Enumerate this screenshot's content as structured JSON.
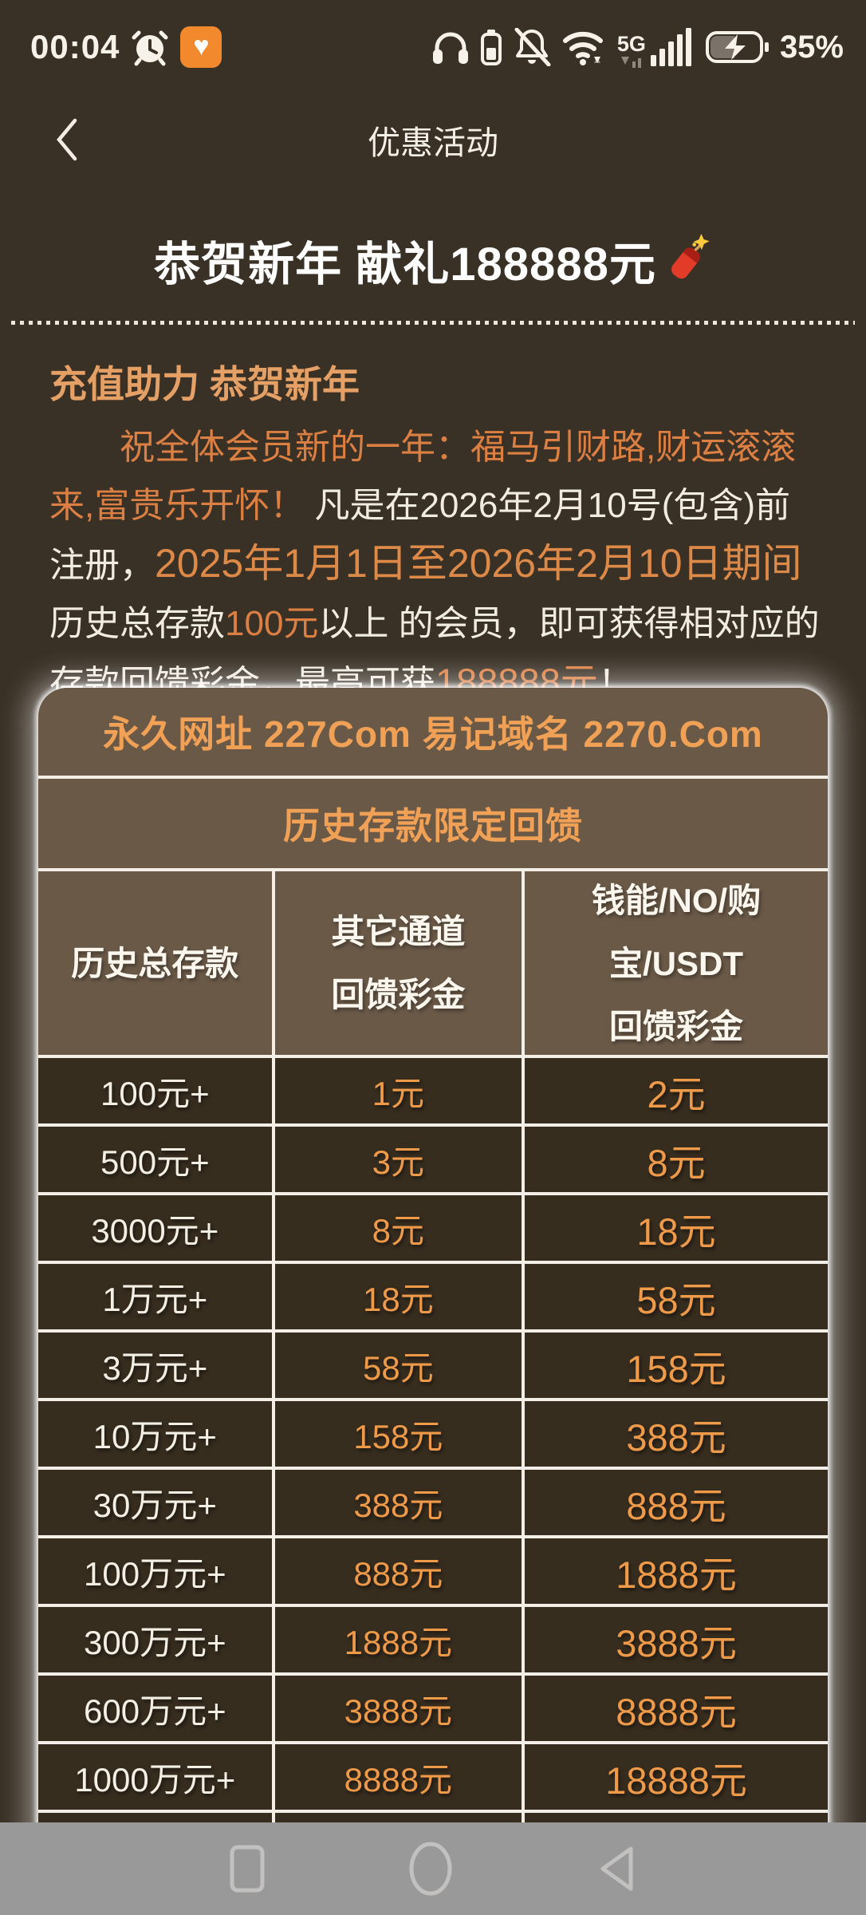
{
  "status_bar": {
    "time": "00:04",
    "network_label": "5G",
    "battery_percent": "35%",
    "left_icons": [
      "alarm-icon",
      "health-heart-icon"
    ],
    "right_icons": [
      "headphones-icon",
      "earbud-battery-icon",
      "bell-muted-icon",
      "wifi-icon",
      "signal-5g-icon",
      "battery-charging-icon"
    ]
  },
  "header": {
    "title": "优惠活动"
  },
  "promo": {
    "title": "恭贺新年 献礼188888元",
    "title_emoji": "firecracker",
    "section_heading": "充值助力 恭贺新年",
    "paragraph": {
      "segments": [
        {
          "text": "祝全体会员新的一年：福马引财路,财运滚滚来,富贵乐开怀！ "
        },
        {
          "text": "凡是在2026年2月10号(包含)前注册，"
        },
        {
          "text": "2025年1月1日至2026年2月10日期间 "
        },
        {
          "text": "历史总存款"
        },
        {
          "text": "100元"
        },
        {
          "text": "以上 的会员，即可获得相对应的存款回馈彩金，最高可获"
        },
        {
          "text": "188888元"
        },
        {
          "text": "！"
        }
      ]
    }
  },
  "card": {
    "site_line": "永久网址 227Com 易记域名 2270.Com",
    "table_title": "历史存款限定回馈",
    "table": {
      "columns": [
        {
          "lines": [
            "历史总存款"
          ]
        },
        {
          "lines": [
            "其它通道",
            "回馈彩金"
          ]
        },
        {
          "lines": [
            "钱能/NO/购",
            "宝/USDT",
            "回馈彩金"
          ]
        }
      ],
      "rows": [
        [
          "100元+",
          "1元",
          "2元"
        ],
        [
          "500元+",
          "3元",
          "8元"
        ],
        [
          "3000元+",
          "8元",
          "18元"
        ],
        [
          "1万元+",
          "18元",
          "58元"
        ],
        [
          "3万元+",
          "58元",
          "158元"
        ],
        [
          "10万元+",
          "158元",
          "388元"
        ],
        [
          "30万元+",
          "388元",
          "888元"
        ],
        [
          "100万元+",
          "888元",
          "1888元"
        ],
        [
          "300万元+",
          "1888元",
          "3888元"
        ],
        [
          "600万元+",
          "3888元",
          "8888元"
        ],
        [
          "1000万元+",
          "8888元",
          "18888元"
        ]
      ],
      "partial_row": true
    }
  },
  "nav_bar": {
    "icons": [
      "recents",
      "home",
      "back"
    ]
  },
  "colors": {
    "page_bg": "#3a3126",
    "card_bg": "#6a5947",
    "data_cell_bg": "#372d1f",
    "table_border": "#f3efe6",
    "card_orange": "#f0a156",
    "value_orange": "#ee9a49",
    "heading_tan": "#e5a066",
    "paragraph_orange": "#dc7f43",
    "nav_bg": "#9a999a"
  }
}
